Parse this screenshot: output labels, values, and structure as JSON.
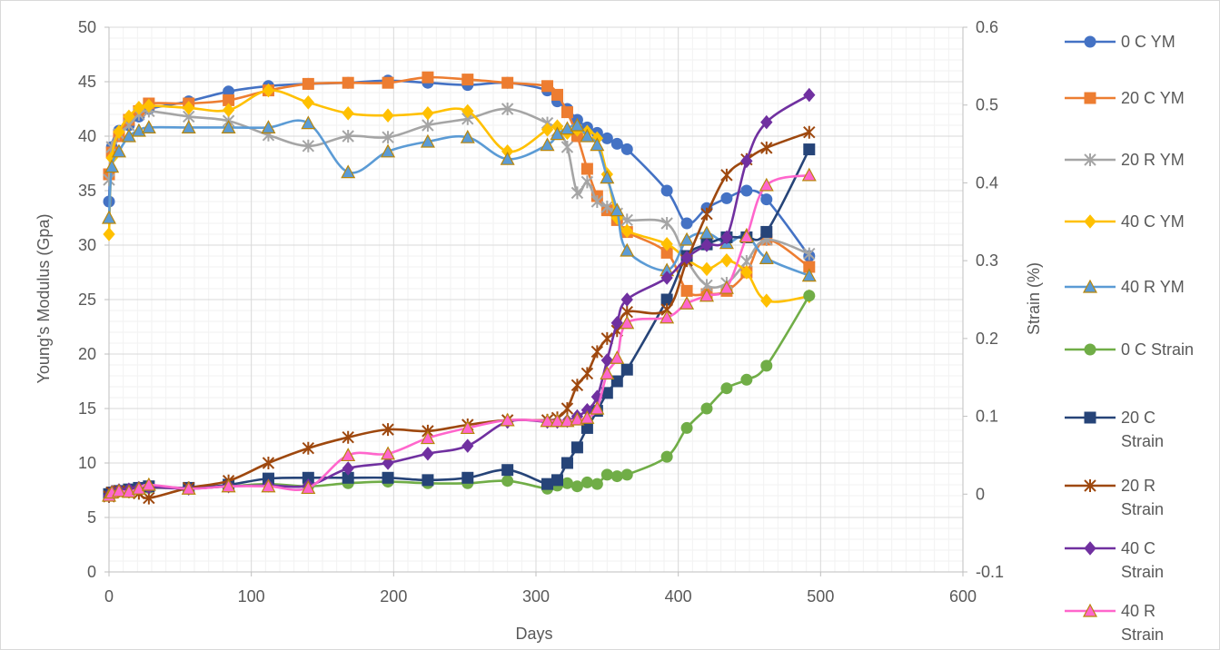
{
  "chart_data": {
    "type": "line",
    "xlabel": "Days",
    "ylabel": "Young's Modulus (Gpa)",
    "y2label": "Strain (%)",
    "xlim": [
      0,
      600
    ],
    "ylim": [
      0,
      50
    ],
    "y2lim": [
      -0.1,
      0.6
    ],
    "x_ticks": [
      "0",
      "100",
      "200",
      "300",
      "400",
      "500",
      "600"
    ],
    "y_ticks": [
      "0",
      "5",
      "10",
      "15",
      "20",
      "25",
      "30",
      "35",
      "40",
      "45",
      "50"
    ],
    "y2_ticks": [
      "-0.1",
      "0",
      "0.1",
      "0.2",
      "0.3",
      "0.4",
      "0.5",
      "0.6"
    ],
    "grid": true,
    "legend_position": "right",
    "series": [
      {
        "name": "0 C YM",
        "axis": "left",
        "color": "#4472C4",
        "marker": "circle",
        "x": [
          0,
          2,
          7,
          14,
          21,
          28,
          56,
          84,
          112,
          140,
          168,
          196,
          224,
          252,
          280,
          308,
          315,
          322,
          329,
          336,
          343,
          350,
          357,
          364,
          392,
          406,
          420,
          434,
          448,
          462,
          492
        ],
        "y": [
          34,
          39,
          40.5,
          41,
          41.8,
          42.5,
          43.2,
          44.1,
          44.6,
          44.8,
          44.9,
          45.1,
          44.9,
          44.7,
          44.9,
          44.2,
          43.2,
          42.5,
          41.5,
          40.8,
          40.3,
          39.8,
          39.3,
          38.8,
          35,
          32,
          33.4,
          34.3,
          35,
          34.2,
          29
        ]
      },
      {
        "name": "20 C YM",
        "axis": "left",
        "color": "#ED7D31",
        "marker": "square",
        "x": [
          0,
          2,
          7,
          14,
          21,
          28,
          56,
          84,
          112,
          140,
          168,
          196,
          224,
          252,
          280,
          308,
          315,
          322,
          329,
          336,
          343,
          350,
          357,
          364,
          392,
          406,
          420,
          434,
          448,
          462,
          492
        ],
        "y": [
          36.5,
          38.5,
          40,
          41.5,
          42.3,
          43,
          43,
          43.3,
          44.2,
          44.8,
          44.9,
          44.9,
          45.4,
          45.2,
          44.9,
          44.6,
          43.8,
          42.2,
          40,
          37,
          34.5,
          33.2,
          32.3,
          31.2,
          29.3,
          25.8,
          25.5,
          25.8,
          27.5,
          30.5,
          28
        ]
      },
      {
        "name": "20 R YM",
        "axis": "left",
        "color": "#A5A5A5",
        "marker": "star",
        "x": [
          0,
          2,
          7,
          14,
          21,
          28,
          56,
          84,
          112,
          140,
          168,
          196,
          224,
          252,
          280,
          308,
          315,
          322,
          329,
          336,
          343,
          350,
          357,
          364,
          392,
          406,
          420,
          434,
          448,
          462,
          492
        ],
        "y": [
          36,
          39,
          40.2,
          41,
          42,
          42.3,
          41.8,
          41.4,
          40.1,
          39.1,
          40,
          39.9,
          41,
          41.6,
          42.5,
          41.2,
          40.5,
          39,
          34.8,
          35.8,
          34,
          33.5,
          32.9,
          32.3,
          32,
          28.6,
          26.3,
          26.5,
          28.5,
          30.5,
          29.2
        ]
      },
      {
        "name": "40 C YM",
        "axis": "left",
        "color": "#FFC000",
        "marker": "diamond",
        "x": [
          0,
          2,
          7,
          14,
          21,
          28,
          56,
          84,
          112,
          140,
          168,
          196,
          224,
          252,
          280,
          308,
          315,
          322,
          329,
          336,
          343,
          350,
          357,
          364,
          392,
          406,
          420,
          434,
          448,
          462,
          492
        ],
        "y": [
          31,
          38,
          40.4,
          41.8,
          42.6,
          42.8,
          42.6,
          42.4,
          44.2,
          43.1,
          42.1,
          41.9,
          42.1,
          42.3,
          38.6,
          40.6,
          40.9,
          40.3,
          40.6,
          40.4,
          39.8,
          36.5,
          32.5,
          31.3,
          30.1,
          28.7,
          27.8,
          28.6,
          27.5,
          24.9,
          25.3
        ]
      },
      {
        "name": "40 R YM",
        "axis": "left",
        "color": "#5B9BD5",
        "marker": "triangle",
        "x": [
          0,
          2,
          7,
          14,
          21,
          28,
          56,
          84,
          112,
          140,
          168,
          196,
          224,
          252,
          280,
          308,
          315,
          322,
          329,
          336,
          343,
          350,
          357,
          364,
          392,
          406,
          420,
          434,
          448,
          462,
          492
        ],
        "y": [
          32.5,
          37.2,
          38.6,
          40,
          40.5,
          40.8,
          40.8,
          40.8,
          40.8,
          41.2,
          36.7,
          38.6,
          39.5,
          39.9,
          37.9,
          39.2,
          40.2,
          40.7,
          41,
          40,
          39.2,
          36.2,
          33.2,
          29.5,
          27.7,
          30.5,
          31.1,
          30.2,
          30.9,
          28.8,
          27.2
        ]
      },
      {
        "name": "0 C Strain",
        "axis": "right",
        "color": "#70AD47",
        "marker": "circle",
        "x": [
          0,
          2,
          7,
          14,
          21,
          28,
          56,
          84,
          112,
          140,
          168,
          196,
          224,
          252,
          280,
          308,
          315,
          322,
          329,
          336,
          343,
          350,
          357,
          364,
          392,
          406,
          420,
          434,
          448,
          462,
          492
        ],
        "y": [
          0,
          0.002,
          0.004,
          0.006,
          0.007,
          0.008,
          0.008,
          0.01,
          0.013,
          0.01,
          0.014,
          0.016,
          0.014,
          0.014,
          0.017,
          0.007,
          0.011,
          0.014,
          0.01,
          0.015,
          0.013,
          0.025,
          0.023,
          0.025,
          0.048,
          0.085,
          0.11,
          0.136,
          0.147,
          0.165,
          0.255
        ]
      },
      {
        "name": "20 C Strain",
        "axis": "right",
        "color": "#264478",
        "marker": "square",
        "x": [
          0,
          2,
          7,
          14,
          21,
          28,
          56,
          84,
          112,
          140,
          168,
          196,
          224,
          252,
          280,
          308,
          315,
          322,
          329,
          336,
          343,
          350,
          357,
          364,
          392,
          406,
          420,
          434,
          448,
          462,
          492
        ],
        "y": [
          0,
          0.002,
          0.004,
          0.006,
          0.008,
          0.01,
          0.008,
          0.012,
          0.02,
          0.021,
          0.021,
          0.021,
          0.018,
          0.021,
          0.031,
          0.013,
          0.018,
          0.04,
          0.06,
          0.085,
          0.107,
          0.13,
          0.145,
          0.16,
          0.25,
          0.306,
          0.321,
          0.33,
          0.33,
          0.337,
          0.443
        ]
      },
      {
        "name": "20 R Strain",
        "axis": "right",
        "color": "#9E480E",
        "marker": "star",
        "x": [
          0,
          2,
          7,
          14,
          21,
          28,
          56,
          84,
          112,
          140,
          168,
          196,
          224,
          252,
          280,
          308,
          315,
          322,
          329,
          336,
          343,
          350,
          357,
          364,
          392,
          406,
          420,
          434,
          448,
          462,
          492
        ],
        "y": [
          -0.003,
          0.002,
          0.004,
          0.003,
          0.001,
          -0.005,
          0.008,
          0.017,
          0.04,
          0.059,
          0.073,
          0.083,
          0.081,
          0.089,
          0.095,
          0.095,
          0.098,
          0.11,
          0.14,
          0.155,
          0.183,
          0.2,
          0.21,
          0.234,
          0.237,
          0.3,
          0.36,
          0.41,
          0.43,
          0.445,
          0.465
        ]
      },
      {
        "name": "40 C Strain",
        "axis": "right",
        "color": "#7030A0",
        "marker": "diamond",
        "x": [
          0,
          2,
          7,
          14,
          21,
          28,
          56,
          84,
          112,
          140,
          168,
          196,
          224,
          252,
          280,
          308,
          315,
          322,
          329,
          336,
          343,
          350,
          357,
          364,
          392,
          406,
          420,
          434,
          448,
          462,
          492
        ],
        "y": [
          -0.002,
          0.003,
          0.005,
          0.006,
          0.008,
          0.009,
          0.007,
          0.01,
          0.011,
          0.011,
          0.033,
          0.04,
          0.052,
          0.062,
          0.093,
          0.093,
          0.093,
          0.094,
          0.1,
          0.108,
          0.125,
          0.172,
          0.22,
          0.25,
          0.278,
          0.304,
          0.32,
          0.33,
          0.428,
          0.478,
          0.513
        ]
      },
      {
        "name": "40 R Strain",
        "axis": "right",
        "color": "#FF66CC",
        "marker": "triangle",
        "x": [
          0,
          2,
          7,
          14,
          21,
          28,
          56,
          84,
          112,
          140,
          168,
          196,
          224,
          252,
          280,
          308,
          315,
          322,
          329,
          336,
          343,
          350,
          357,
          364,
          392,
          406,
          420,
          434,
          448,
          462,
          492
        ],
        "y": [
          -0.002,
          0.002,
          0.004,
          0.003,
          0.007,
          0.012,
          0.007,
          0.01,
          0.01,
          0.008,
          0.05,
          0.052,
          0.072,
          0.085,
          0.095,
          0.094,
          0.094,
          0.094,
          0.096,
          0.098,
          0.11,
          0.155,
          0.175,
          0.22,
          0.227,
          0.245,
          0.255,
          0.265,
          0.331,
          0.397,
          0.41
        ]
      }
    ]
  }
}
